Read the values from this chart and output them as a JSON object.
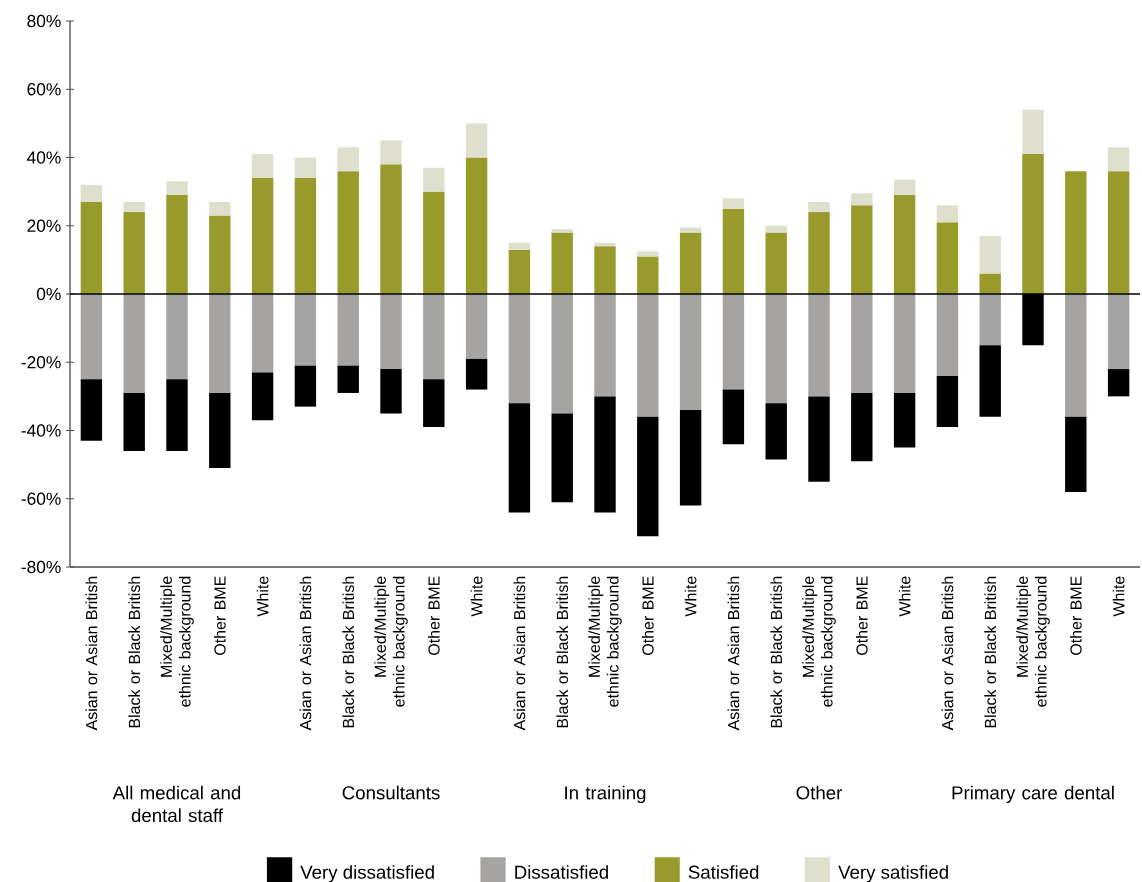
{
  "chart_data": {
    "type": "bar",
    "stacked": true,
    "categories": [
      "Asian or Asian British",
      "Black or Black British",
      "Mixed/Multiple ethnic background",
      "Other BME",
      "White",
      "Asian or Asian British",
      "Black or Black British",
      "Mixed/Multiple ethnic background",
      "Other BME",
      "White",
      "Asian or Asian British",
      "Black or Black British",
      "Mixed/Multiple ethnic background",
      "Other BME",
      "White",
      "Asian or Asian British",
      "Black or Black British",
      "Mixed/Multiple ethnic background",
      "Other BME",
      "White",
      "Asian or Asian British",
      "Black or Black British",
      "Mixed/Multiple ethnic background",
      "Other BME",
      "White"
    ],
    "series": [
      {
        "name": "Dissatisfied",
        "color": "#a5a4a2",
        "values": [
          -25,
          -29,
          -25,
          -29,
          -23,
          -21,
          -21,
          -22,
          -25,
          -19,
          -32,
          -35,
          -30,
          -36,
          -34,
          -28,
          -32,
          -30,
          -29,
          -29,
          -24,
          -15,
          null,
          -36,
          -22
        ]
      },
      {
        "name": "Very dissatisfied",
        "color": "#000000",
        "values": [
          -18,
          -17,
          -21,
          -22,
          -14,
          -12,
          -8,
          -13,
          -14,
          -9,
          -32,
          -26,
          -34,
          -35,
          -28,
          -16,
          -16.5,
          -25,
          -20,
          -16,
          -15,
          -21,
          -15,
          -22,
          -8
        ]
      },
      {
        "name": "Satisfied",
        "color": "#989a2b",
        "values": [
          27,
          24,
          29,
          23,
          34,
          34,
          36,
          38,
          30,
          40,
          13,
          18,
          14,
          11,
          18,
          25,
          18,
          24,
          26,
          29,
          21,
          6,
          41,
          36,
          36
        ]
      },
      {
        "name": "Very satisfied",
        "color": "#dfdfce",
        "values": [
          5,
          3,
          4,
          4,
          7,
          6,
          7,
          7,
          7,
          10,
          2,
          1,
          1,
          1.5,
          1.5,
          3,
          2,
          3,
          3.5,
          4.5,
          5,
          11,
          13,
          null,
          7
        ]
      }
    ],
    "ylim": [
      -80,
      80
    ],
    "yticks": [
      {
        "value": -80,
        "label": "-80%"
      },
      {
        "value": -60,
        "label": "-60%"
      },
      {
        "value": -40,
        "label": "-40%"
      },
      {
        "value": -20,
        "label": "-20%"
      },
      {
        "value": 0,
        "label": "0%"
      },
      {
        "value": 20,
        "label": "20%"
      },
      {
        "value": 40,
        "label": "40%"
      },
      {
        "value": 60,
        "label": "60%"
      },
      {
        "value": 80,
        "label": "80%"
      }
    ],
    "annotations": [
      "All medical and dental staff",
      "Consultants",
      "In training",
      "Other",
      "Primary care dental"
    ],
    "legend": "bottom"
  }
}
